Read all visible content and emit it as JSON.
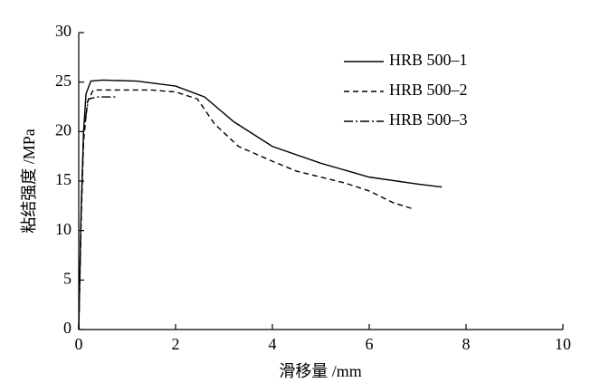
{
  "chart_data": {
    "type": "line",
    "x_label": "滑移量 /mm",
    "y_label": "粘结强度 /MPa",
    "xlim": [
      0,
      10
    ],
    "xticks": [
      0,
      2,
      4,
      6,
      8,
      10
    ],
    "ylim": [
      0,
      30
    ],
    "yticks": [
      0,
      5,
      10,
      15,
      20,
      25,
      30
    ],
    "legend": "upper-right",
    "series": [
      {
        "name": "HRB 500–1",
        "color": "#000000",
        "dash": "none",
        "x": [
          0,
          0.05,
          0.1,
          0.15,
          0.25,
          0.5,
          1.2,
          2,
          2.6,
          3.2,
          4,
          5,
          6,
          7,
          7.5
        ],
        "values": [
          0,
          12,
          20,
          23.8,
          25.1,
          25.2,
          25.1,
          24.6,
          23.5,
          21,
          18.5,
          16.8,
          15.4,
          14.7,
          14.4
        ]
      },
      {
        "name": "HRB 500–2",
        "color": "#000000",
        "dash": "6 4",
        "x": [
          0,
          0.05,
          0.1,
          0.18,
          0.3,
          1.5,
          2,
          2.45,
          2.8,
          3.3,
          4,
          4.5,
          5.5,
          6,
          6.5,
          6.9
        ],
        "values": [
          0,
          11,
          19,
          23,
          24.2,
          24.2,
          24,
          23.3,
          20.8,
          18.5,
          17,
          16,
          14.8,
          14,
          12.8,
          12.2
        ]
      },
      {
        "name": "HRB 500–3",
        "color": "#000000",
        "dash": "10 3 2 3",
        "x": [
          0,
          0.05,
          0.1,
          0.2,
          0.4,
          0.8
        ],
        "values": [
          0,
          12,
          20,
          23.3,
          23.5,
          23.5
        ]
      }
    ]
  }
}
